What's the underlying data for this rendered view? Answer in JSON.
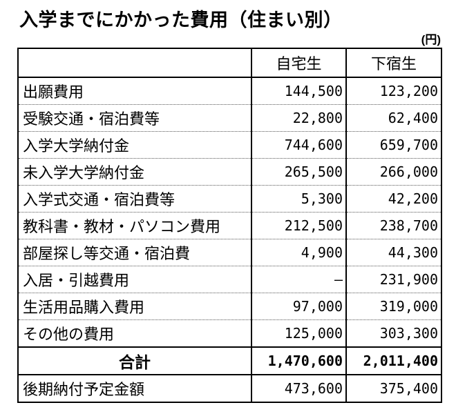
{
  "title": "入学までにかかった費用（住まい別）",
  "unit_label": "(円)",
  "table": {
    "headers": [
      "",
      "自宅生",
      "下宿生"
    ],
    "rows": [
      {
        "label": "出願費用",
        "home": "144,500",
        "boarding": "123,200"
      },
      {
        "label": "受験交通・宿泊費等",
        "home": "22,800",
        "boarding": "62,400"
      },
      {
        "label": "入学大学納付金",
        "home": "744,600",
        "boarding": "659,700"
      },
      {
        "label": "未入学大学納付金",
        "home": "265,500",
        "boarding": "266,000"
      },
      {
        "label": "入学式交通・宿泊費等",
        "home": "5,300",
        "boarding": "42,200"
      },
      {
        "label": "教科書・教材・パソコン費用",
        "home": "212,500",
        "boarding": "238,700"
      },
      {
        "label": "部屋探し等交通・宿泊費",
        "home": "4,900",
        "boarding": "44,300"
      },
      {
        "label": "入居・引越費用",
        "home": "—",
        "boarding": "231,900"
      },
      {
        "label": "生活用品購入費用",
        "home": "97,000",
        "boarding": "319,000"
      },
      {
        "label": "その他の費用",
        "home": "125,000",
        "boarding": "303,300"
      }
    ],
    "total_row": {
      "label": "合計",
      "home": "1,470,600",
      "boarding": "2,011,400"
    },
    "footer_row": {
      "label": "後期納付予定金額",
      "home": "473,600",
      "boarding": "375,400"
    }
  },
  "chart_data": {
    "type": "table",
    "title": "入学までにかかった費用（住まい別）",
    "unit": "円",
    "categories": [
      "出願費用",
      "受験交通・宿泊費等",
      "入学大学納付金",
      "未入学大学納付金",
      "入学式交通・宿泊費等",
      "教科書・教材・パソコン費用",
      "部屋探し等交通・宿泊費",
      "入居・引越費用",
      "生活用品購入費用",
      "その他の費用"
    ],
    "series": [
      {
        "name": "自宅生",
        "values": [
          144500,
          22800,
          744600,
          265500,
          5300,
          212500,
          4900,
          null,
          97000,
          125000
        ]
      },
      {
        "name": "下宿生",
        "values": [
          123200,
          62400,
          659700,
          266000,
          42200,
          238700,
          44300,
          231900,
          319000,
          303300
        ]
      }
    ],
    "totals": {
      "自宅生": 1470600,
      "下宿生": 2011400
    },
    "planned_second_term_payment": {
      "自宅生": 473600,
      "下宿生": 375400
    }
  }
}
